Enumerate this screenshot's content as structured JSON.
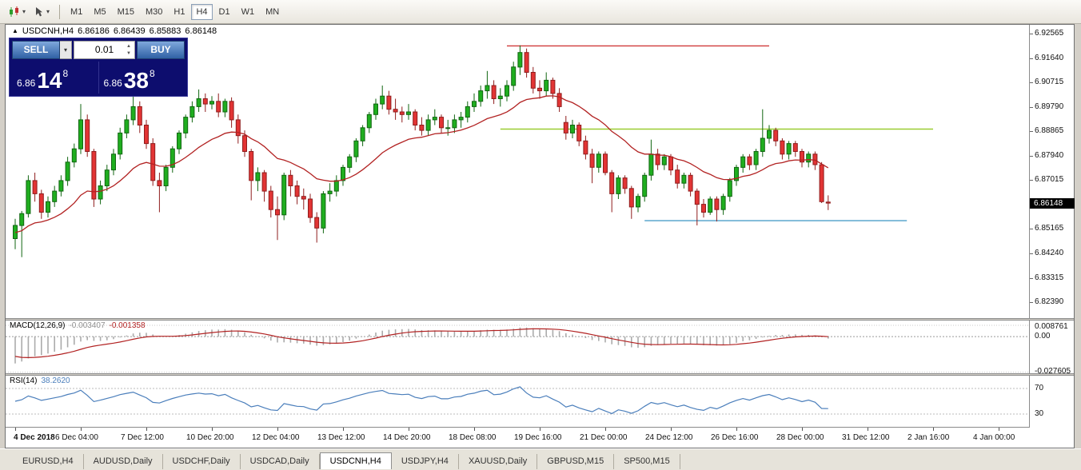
{
  "icons": {
    "symbol_marker": "▲",
    "dropdown_arrow": "▾",
    "spin_up": "▲",
    "spin_down": "▼"
  },
  "toolbar": {
    "timeframes": [
      "M1",
      "M5",
      "M15",
      "M30",
      "H1",
      "H4",
      "D1",
      "W1",
      "MN"
    ],
    "active_timeframe": "H4"
  },
  "chart": {
    "header": {
      "symbol_period": "USDCNH,H4",
      "open": "6.86186",
      "high": "6.86439",
      "low": "6.85883",
      "close": "6.86148"
    },
    "current_price": "6.86148",
    "colors": {
      "up_fill": "#1FAE1F",
      "up_border": "#116611",
      "down_fill": "#E23434",
      "down_border": "#8F1D1D",
      "ma": "#B22222",
      "macd_hist": "#ABABAB",
      "macd_signal": "#B22222",
      "rsi": "#4A7EBB"
    }
  },
  "one_click": {
    "sell_label": "SELL",
    "buy_label": "BUY",
    "volume": "0.01",
    "sell_price": {
      "prefix": "6.86",
      "big": "14",
      "sup": "8"
    },
    "buy_price": {
      "prefix": "6.86",
      "big": "38",
      "sup": "8"
    }
  },
  "macd": {
    "label": "MACD(12,26,9)",
    "value_main": "-0.003407",
    "value_signal": "-0.001358",
    "axis_labels": [
      "0.008761",
      "0.00",
      "-0.027605"
    ]
  },
  "rsi": {
    "label": "RSI(14)",
    "value": "38.2620",
    "levels": [
      70,
      30
    ]
  },
  "tabs": {
    "items": [
      "EURUSD,H4",
      "AUDUSD,Daily",
      "USDCHF,Daily",
      "USDCAD,Daily",
      "USDCNH,H4",
      "USDJPY,H4",
      "XAUUSD,Daily",
      "GBPUSD,M15",
      "SP500,M15"
    ],
    "active": "USDCNH,H4"
  },
  "chart_data": {
    "type": "candlestick",
    "symbol": "USDCNH",
    "timeframe": "H4",
    "ylim": [
      6.8185,
      6.929
    ],
    "price_axis_ticks": [
      "6.92565",
      "6.91640",
      "6.90715",
      "6.89790",
      "6.88865",
      "6.87940",
      "6.87015",
      "6.86090",
      "6.85165",
      "6.84240",
      "6.83315",
      "6.82390"
    ],
    "x_labels": [
      {
        "index": 0,
        "label": "4 Dec 2018"
      },
      {
        "index": 10,
        "label": "6 Dec 04:00"
      },
      {
        "index": 20,
        "label": "7 Dec 12:00"
      },
      {
        "index": 30,
        "label": "10 Dec 20:00"
      },
      {
        "index": 40,
        "label": "12 Dec 04:00"
      },
      {
        "index": 50,
        "label": "13 Dec 12:00"
      },
      {
        "index": 60,
        "label": "14 Dec 20:00"
      },
      {
        "index": 70,
        "label": "18 Dec 08:00"
      },
      {
        "index": 80,
        "label": "19 Dec 16:00"
      },
      {
        "index": 90,
        "label": "21 Dec 00:00"
      },
      {
        "index": 100,
        "label": "24 Dec 12:00"
      },
      {
        "index": 110,
        "label": "26 Dec 16:00"
      },
      {
        "index": 120,
        "label": "28 Dec 00:00"
      },
      {
        "index": 130,
        "label": "31 Dec 12:00"
      },
      {
        "index": 140,
        "label": "2 Jan 16:00"
      },
      {
        "index": 150,
        "label": "4 Jan 00:00"
      }
    ],
    "levels": [
      {
        "name": "resistance-line",
        "price": 6.921,
        "from_index": 75,
        "to_index": 115,
        "color": "#D03A3A"
      },
      {
        "name": "resistance-2-line",
        "price": 6.8895,
        "from_index": 74,
        "to_index": 140,
        "color": "#9ACD32"
      },
      {
        "name": "support-line",
        "price": 6.8548,
        "from_index": 96,
        "to_index": 136,
        "color": "#4C9FC9"
      }
    ],
    "indicators": [
      {
        "name": "MACD",
        "params": "12,26,9",
        "shown_values": [
          "-0.003407",
          "-0.001358"
        ],
        "axis_labels": [
          "0.008761",
          "0.00",
          "-0.027605"
        ]
      },
      {
        "name": "RSI",
        "params": "14",
        "shown_value": "38.2620",
        "levels": [
          70,
          30
        ]
      }
    ],
    "candles": [
      [
        6.848,
        6.8555,
        6.844,
        6.853
      ],
      [
        6.853,
        6.8585,
        6.841,
        6.8575
      ],
      [
        6.8575,
        6.872,
        6.856,
        6.87
      ],
      [
        6.87,
        6.873,
        6.862,
        6.865
      ],
      [
        6.865,
        6.8665,
        6.8555,
        6.858
      ],
      [
        6.858,
        6.864,
        6.856,
        6.862
      ],
      [
        6.862,
        6.868,
        6.86,
        6.866
      ],
      [
        6.866,
        6.872,
        6.864,
        6.87
      ],
      [
        6.87,
        6.879,
        6.868,
        6.877
      ],
      [
        6.877,
        6.884,
        6.875,
        6.882
      ],
      [
        6.882,
        6.899,
        6.88,
        6.893
      ],
      [
        6.893,
        6.895,
        6.879,
        6.881
      ],
      [
        6.881,
        6.882,
        6.86,
        6.863
      ],
      [
        6.863,
        6.87,
        6.861,
        6.868
      ],
      [
        6.868,
        6.876,
        6.866,
        6.874
      ],
      [
        6.874,
        6.882,
        6.872,
        6.88
      ],
      [
        6.88,
        6.89,
        6.878,
        6.888
      ],
      [
        6.888,
        6.895,
        6.886,
        6.893
      ],
      [
        6.893,
        6.9065,
        6.891,
        6.898
      ],
      [
        6.898,
        6.9,
        6.888,
        6.891
      ],
      [
        6.891,
        6.893,
        6.882,
        6.884
      ],
      [
        6.884,
        6.886,
        6.868,
        6.87
      ],
      [
        6.87,
        6.873,
        6.858,
        6.868
      ],
      [
        6.868,
        6.876,
        6.866,
        6.875
      ],
      [
        6.875,
        6.883,
        6.873,
        6.882
      ],
      [
        6.882,
        6.889,
        6.88,
        6.888
      ],
      [
        6.888,
        6.895,
        6.886,
        6.894
      ],
      [
        6.894,
        6.9,
        6.892,
        6.898
      ],
      [
        6.898,
        6.9045,
        6.896,
        6.901
      ],
      [
        6.901,
        6.903,
        6.896,
        6.899
      ],
      [
        6.899,
        6.902,
        6.897,
        6.9
      ],
      [
        6.9,
        6.903,
        6.894,
        6.896
      ],
      [
        6.896,
        6.901,
        6.894,
        6.9
      ],
      [
        6.9,
        6.9015,
        6.89,
        6.893
      ],
      [
        6.893,
        6.895,
        6.884,
        6.887
      ],
      [
        6.887,
        6.889,
        6.879,
        6.881
      ],
      [
        6.881,
        6.882,
        6.8625,
        6.87
      ],
      [
        6.87,
        6.875,
        6.866,
        6.873
      ],
      [
        6.873,
        6.874,
        6.862,
        6.866
      ],
      [
        6.866,
        6.868,
        6.856,
        6.859
      ],
      [
        6.859,
        6.864,
        6.8475,
        6.857
      ],
      [
        6.857,
        6.873,
        6.855,
        6.872
      ],
      [
        6.872,
        6.874,
        6.864,
        6.868
      ],
      [
        6.868,
        6.87,
        6.861,
        6.864
      ],
      [
        6.864,
        6.867,
        6.859,
        6.863
      ],
      [
        6.863,
        6.865,
        6.854,
        6.856
      ],
      [
        6.856,
        6.858,
        6.8465,
        6.852
      ],
      [
        6.852,
        6.866,
        6.85,
        6.865
      ],
      [
        6.865,
        6.869,
        6.862,
        6.866
      ],
      [
        6.866,
        6.872,
        6.864,
        6.87
      ],
      [
        6.87,
        6.876,
        6.868,
        6.875
      ],
      [
        6.875,
        6.88,
        6.873,
        6.879
      ],
      [
        6.879,
        6.886,
        6.877,
        6.885
      ],
      [
        6.885,
        6.891,
        6.883,
        6.89
      ],
      [
        6.89,
        6.896,
        6.888,
        6.895
      ],
      [
        6.895,
        6.901,
        6.893,
        6.899
      ],
      [
        6.899,
        6.906,
        6.897,
        6.902
      ],
      [
        6.902,
        6.904,
        6.895,
        6.897
      ],
      [
        6.897,
        6.901,
        6.893,
        6.896
      ],
      [
        6.896,
        6.898,
        6.892,
        6.895
      ],
      [
        6.895,
        6.899,
        6.893,
        6.896
      ],
      [
        6.896,
        6.897,
        6.889,
        6.891
      ],
      [
        6.891,
        6.894,
        6.887,
        6.889
      ],
      [
        6.889,
        6.895,
        6.887,
        6.893
      ],
      [
        6.893,
        6.897,
        6.891,
        6.894
      ],
      [
        6.894,
        6.895,
        6.888,
        6.89
      ],
      [
        6.89,
        6.893,
        6.887,
        6.89
      ],
      [
        6.89,
        6.895,
        6.888,
        6.893
      ],
      [
        6.893,
        6.896,
        6.89,
        6.894
      ],
      [
        6.894,
        6.9,
        6.892,
        6.898
      ],
      [
        6.898,
        6.903,
        6.896,
        6.9
      ],
      [
        6.9,
        6.906,
        6.898,
        6.904
      ],
      [
        6.904,
        6.9115,
        6.901,
        6.906
      ],
      [
        6.906,
        6.908,
        6.899,
        6.901
      ],
      [
        6.901,
        6.905,
        6.898,
        6.902
      ],
      [
        6.902,
        6.908,
        6.9,
        6.906
      ],
      [
        6.906,
        6.915,
        6.904,
        6.913
      ],
      [
        6.913,
        6.9212,
        6.91,
        6.9185
      ],
      [
        6.9185,
        6.92,
        6.909,
        6.911
      ],
      [
        6.911,
        6.913,
        6.903,
        6.905
      ],
      [
        6.905,
        6.908,
        6.901,
        6.904
      ],
      [
        6.904,
        6.911,
        6.902,
        6.908
      ],
      [
        6.908,
        6.909,
        6.901,
        6.903
      ],
      [
        6.903,
        6.905,
        6.896,
        6.898
      ],
      [
        6.892,
        6.8945,
        6.8855,
        6.888
      ],
      [
        6.888,
        6.893,
        6.886,
        6.891
      ],
      [
        6.891,
        6.892,
        6.883,
        6.885
      ],
      [
        6.885,
        6.887,
        6.878,
        6.88
      ],
      [
        6.88,
        6.882,
        6.869,
        6.875
      ],
      [
        6.875,
        6.881,
        6.873,
        6.88
      ],
      [
        6.88,
        6.881,
        6.872,
        6.873
      ],
      [
        6.873,
        6.874,
        6.858,
        6.865
      ],
      [
        6.865,
        6.872,
        6.863,
        6.871
      ],
      [
        6.871,
        6.872,
        6.865,
        6.867
      ],
      [
        6.867,
        6.868,
        6.8555,
        6.86
      ],
      [
        6.86,
        6.865,
        6.858,
        6.864
      ],
      [
        6.864,
        6.873,
        6.862,
        6.872
      ],
      [
        6.872,
        6.8855,
        6.87,
        6.88
      ],
      [
        6.88,
        6.882,
        6.874,
        6.876
      ],
      [
        6.876,
        6.88,
        6.874,
        6.879
      ],
      [
        6.879,
        6.88,
        6.872,
        6.874
      ],
      [
        6.874,
        6.876,
        6.867,
        6.869
      ],
      [
        6.869,
        6.873,
        6.867,
        6.872
      ],
      [
        6.872,
        6.873,
        6.864,
        6.866
      ],
      [
        6.866,
        6.867,
        6.853,
        6.861
      ],
      [
        6.861,
        6.863,
        6.856,
        6.858
      ],
      [
        6.858,
        6.864,
        6.857,
        6.863
      ],
      [
        6.863,
        6.864,
        6.8545,
        6.859
      ],
      [
        6.859,
        6.865,
        6.857,
        6.864
      ],
      [
        6.864,
        6.871,
        6.862,
        6.87
      ],
      [
        6.87,
        6.876,
        6.868,
        6.875
      ],
      [
        6.875,
        6.88,
        6.873,
        6.879
      ],
      [
        6.879,
        6.88,
        6.874,
        6.876
      ],
      [
        6.876,
        6.882,
        6.874,
        6.881
      ],
      [
        6.881,
        6.897,
        6.879,
        6.886
      ],
      [
        6.886,
        6.891,
        6.884,
        6.889
      ],
      [
        6.889,
        6.89,
        6.883,
        6.885
      ],
      [
        6.885,
        6.886,
        6.878,
        6.88
      ],
      [
        6.88,
        6.885,
        6.878,
        6.884
      ],
      [
        6.884,
        6.885,
        6.879,
        6.881
      ],
      [
        6.881,
        6.882,
        6.875,
        6.877
      ],
      [
        6.877,
        6.881,
        6.875,
        6.88
      ],
      [
        6.88,
        6.881,
        6.874,
        6.876
      ],
      [
        6.876,
        6.877,
        6.8615,
        6.862
      ],
      [
        6.86186,
        6.86439,
        6.85883,
        6.86148
      ]
    ]
  }
}
